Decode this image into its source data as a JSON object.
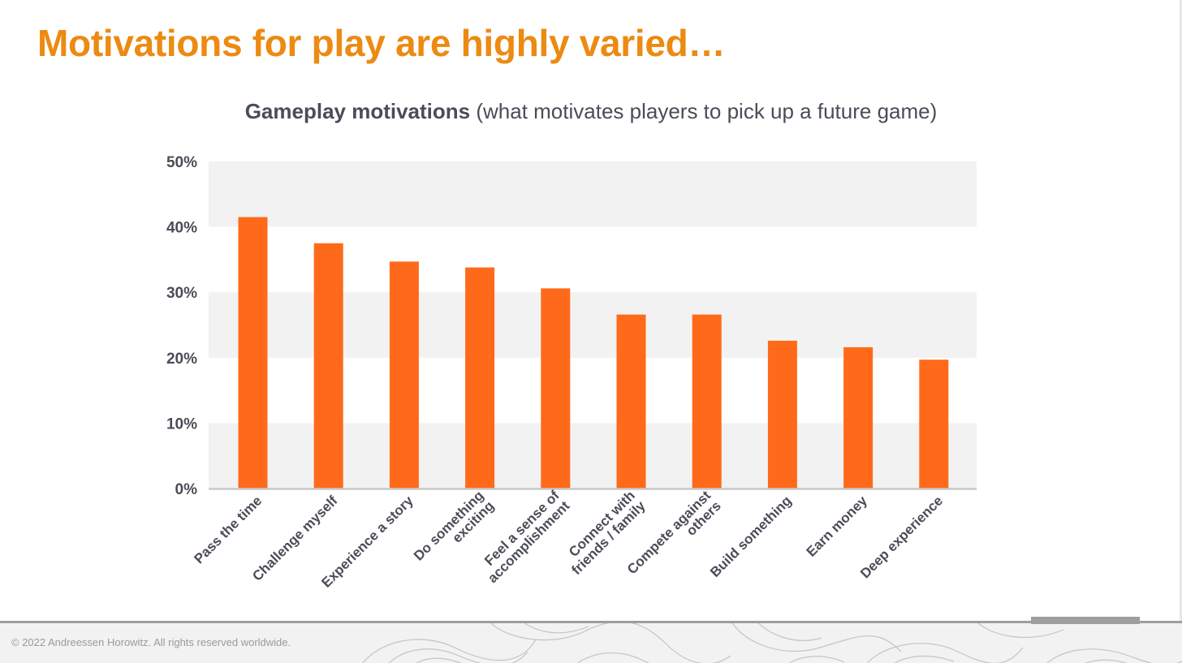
{
  "slide": {
    "title": "Motivations for play are highly varied…",
    "copyright": "© 2022 Andreessen Horowitz. All rights reserved worldwide."
  },
  "chart_data": {
    "type": "bar",
    "title_bold": "Gameplay motivations",
    "title_rest": " (what motivates players to pick up a future game)",
    "categories": [
      "Pass the time",
      "Challenge myself",
      "Experience a story",
      "Do something exciting",
      "Feel a sense of accomplishment",
      "Connect with friends / family",
      "Compete against others",
      "Build something",
      "Earn money",
      "Deep experience"
    ],
    "category_lines": [
      [
        "Pass the time"
      ],
      [
        "Challenge myself"
      ],
      [
        "Experience a story"
      ],
      [
        "Do something",
        "exciting"
      ],
      [
        "Feel a sense of",
        "accomplishment"
      ],
      [
        "Connect with",
        "friends / family"
      ],
      [
        "Compete against",
        "others"
      ],
      [
        "Build something"
      ],
      [
        "Earn money"
      ],
      [
        "Deep experience"
      ]
    ],
    "values": [
      41.5,
      37.5,
      34.7,
      33.8,
      30.6,
      26.6,
      26.6,
      22.6,
      21.6,
      19.7
    ],
    "ylim": [
      0,
      50
    ],
    "yticks": [
      0,
      10,
      20,
      30,
      40,
      50
    ],
    "ytick_labels": [
      "0%",
      "10%",
      "20%",
      "30%",
      "40%",
      "50%"
    ],
    "grid": "alternating bands",
    "colors": {
      "bar": "#ff6a1a",
      "band": "#f2f2f2",
      "axis": "#c8c8c8",
      "text": "#4a4d57"
    }
  }
}
